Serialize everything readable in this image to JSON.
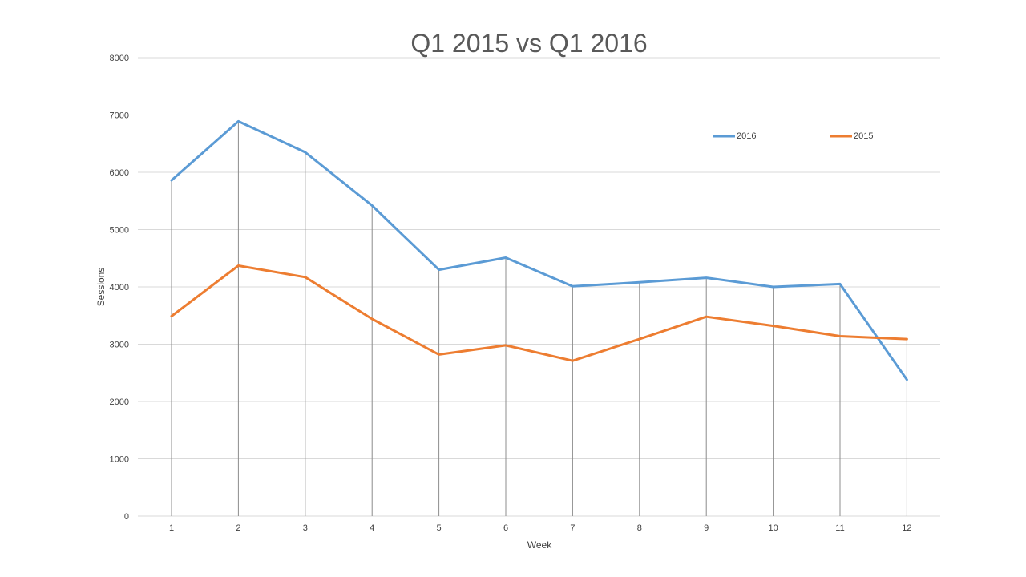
{
  "chart_data": {
    "type": "line",
    "title": "Q1 2015 vs Q1 2016",
    "xlabel": "Week",
    "ylabel": "Sessions",
    "categories": [
      "1",
      "2",
      "3",
      "4",
      "5",
      "6",
      "7",
      "8",
      "9",
      "10",
      "11",
      "12"
    ],
    "yticks": [
      "0",
      "1000",
      "2000",
      "3000",
      "4000",
      "5000",
      "6000",
      "7000",
      "8000"
    ],
    "ylim": [
      0,
      8000
    ],
    "grid": true,
    "drop_lines": true,
    "legend_position": "top-right",
    "series": [
      {
        "name": "2016",
        "color": "#5B9BD5",
        "values": [
          5860,
          6890,
          6350,
          5420,
          4300,
          4510,
          4010,
          4080,
          4160,
          4000,
          4050,
          2380
        ]
      },
      {
        "name": "2015",
        "color": "#ED7D31",
        "values": [
          3490,
          4370,
          4170,
          3440,
          2820,
          2980,
          2710,
          3090,
          3480,
          3320,
          3140,
          3090
        ]
      }
    ]
  }
}
